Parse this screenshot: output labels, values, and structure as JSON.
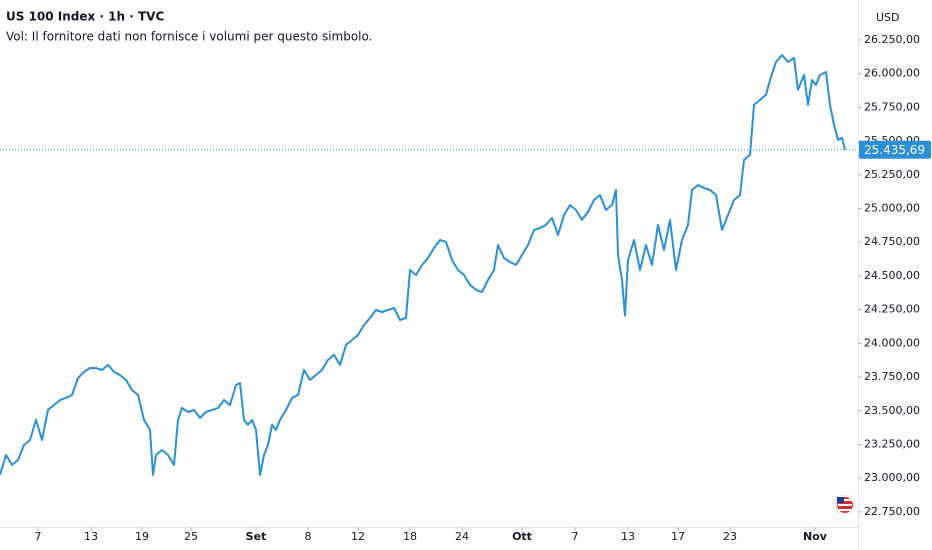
{
  "chart_data": {
    "type": "line",
    "title": "US 100 Index · 1h · TVC",
    "subtitle": "Vol: Il fornitore dati non fornisce i volumi per questo simbolo.",
    "currency": "USD",
    "color": "#2b8fd6",
    "grid": false,
    "x": [
      0,
      3,
      6,
      9,
      12,
      15,
      18,
      21,
      24,
      27,
      30,
      33,
      36,
      39,
      42,
      45,
      48,
      51,
      54,
      57,
      60,
      63,
      66,
      69,
      72,
      75,
      76.5,
      78,
      81,
      84,
      87,
      89,
      91,
      94,
      97,
      100,
      103,
      106,
      109,
      112,
      115,
      118,
      120,
      122,
      124,
      126,
      128,
      130,
      132,
      134,
      136,
      138,
      140,
      143,
      146,
      149,
      152,
      155,
      158,
      161,
      164,
      167,
      170,
      173,
      176,
      179,
      182,
      185,
      188,
      191,
      194,
      197,
      200,
      203,
      205,
      208,
      211,
      214,
      217,
      220,
      223,
      226,
      229,
      232,
      235,
      238,
      241,
      244,
      247,
      249,
      252,
      255,
      258,
      261,
      264,
      267,
      270,
      273,
      276,
      279,
      282,
      285,
      288,
      291,
      294,
      297,
      300,
      303,
      306,
      308,
      309,
      311,
      312.5,
      314,
      317,
      320,
      323,
      326,
      329,
      332,
      335,
      338,
      341,
      344,
      346,
      349,
      352,
      355,
      358,
      361,
      364,
      367,
      370,
      372,
      375,
      377,
      380,
      383,
      385,
      388,
      391,
      394,
      397,
      399,
      402,
      404,
      406,
      408,
      410,
      413,
      415,
      417,
      419,
      421,
      422.5
    ],
    "series": [
      {
        "name": "US 100 Index",
        "values": [
          23024,
          23172,
          23098,
          23135,
          23246,
          23283,
          23432,
          23283,
          23506,
          23543,
          23580,
          23595,
          23617,
          23743,
          23788,
          23817,
          23817,
          23802,
          23840,
          23788,
          23765,
          23728,
          23654,
          23617,
          23432,
          23358,
          23024,
          23172,
          23209,
          23172,
          23098,
          23432,
          23521,
          23491,
          23506,
          23447,
          23491,
          23506,
          23521,
          23580,
          23543,
          23691,
          23706,
          23432,
          23395,
          23432,
          23358,
          23024,
          23172,
          23246,
          23395,
          23358,
          23432,
          23506,
          23595,
          23617,
          23802,
          23728,
          23765,
          23802,
          23877,
          23914,
          23840,
          23988,
          24025,
          24062,
          24136,
          24188,
          24247,
          24232,
          24247,
          24262,
          24173,
          24188,
          24544,
          24507,
          24581,
          24633,
          24707,
          24766,
          24752,
          24618,
          24544,
          24507,
          24433,
          24396,
          24381,
          24470,
          24544,
          24729,
          24633,
          24603,
          24581,
          24655,
          24729,
          24841,
          24855,
          24878,
          24930,
          24803,
          24952,
          25026,
          24989,
          24915,
          24974,
          25063,
          25100,
          24989,
          25026,
          25137,
          24655,
          24470,
          24206,
          24618,
          24766,
          24544,
          24729,
          24581,
          24878,
          24692,
          24915,
          24544,
          24766,
          24878,
          25137,
          25174,
          25152,
          25137,
          25100,
          24841,
          24952,
          25063,
          25100,
          25360,
          25397,
          25768,
          25805,
          25842,
          25953,
          26086,
          26138,
          26086,
          26116,
          25879,
          25990,
          25768,
          25953,
          25916,
          25990,
          26012,
          25768,
          25620,
          25509,
          25524,
          25435.69
        ]
      }
    ],
    "last_price": {
      "value": 25435.69,
      "label": "25.435,69"
    },
    "xlim": [
      0,
      429
    ],
    "xticks": [
      {
        "value": 19,
        "label": "7"
      },
      {
        "value": 45.5,
        "label": "13"
      },
      {
        "value": 71,
        "label": "19"
      },
      {
        "value": 95.5,
        "label": "25"
      },
      {
        "value": 128,
        "label": "Set"
      },
      {
        "value": 154,
        "label": "8"
      },
      {
        "value": 179,
        "label": "12"
      },
      {
        "value": 205,
        "label": "18"
      },
      {
        "value": 231,
        "label": "24"
      },
      {
        "value": 261,
        "label": "Ott"
      },
      {
        "value": 287.5,
        "label": "7"
      },
      {
        "value": 314,
        "label": "13"
      },
      {
        "value": 339,
        "label": "17"
      },
      {
        "value": 365,
        "label": "23"
      },
      {
        "value": 407.5,
        "label": "Nov"
      }
    ],
    "ylim": [
      22638,
      26546
    ],
    "yticks": [
      {
        "value": 22750,
        "label": "22.750,00"
      },
      {
        "value": 23000,
        "label": "23.000,00"
      },
      {
        "value": 23250,
        "label": "23.250,00"
      },
      {
        "value": 23500,
        "label": "23.500,00"
      },
      {
        "value": 23750,
        "label": "23.750,00"
      },
      {
        "value": 24000,
        "label": "24.000,00"
      },
      {
        "value": 24250,
        "label": "24.250,00"
      },
      {
        "value": 24500,
        "label": "24.500,00"
      },
      {
        "value": 24750,
        "label": "24.750,00"
      },
      {
        "value": 25000,
        "label": "25.000,00"
      },
      {
        "value": 25250,
        "label": "25.250,00"
      },
      {
        "value": 25500,
        "label": "25.500,00"
      },
      {
        "value": 25750,
        "label": "25.750,00"
      },
      {
        "value": 26000,
        "label": "26.000,00"
      },
      {
        "value": 26250,
        "label": "26.250,00"
      }
    ]
  }
}
